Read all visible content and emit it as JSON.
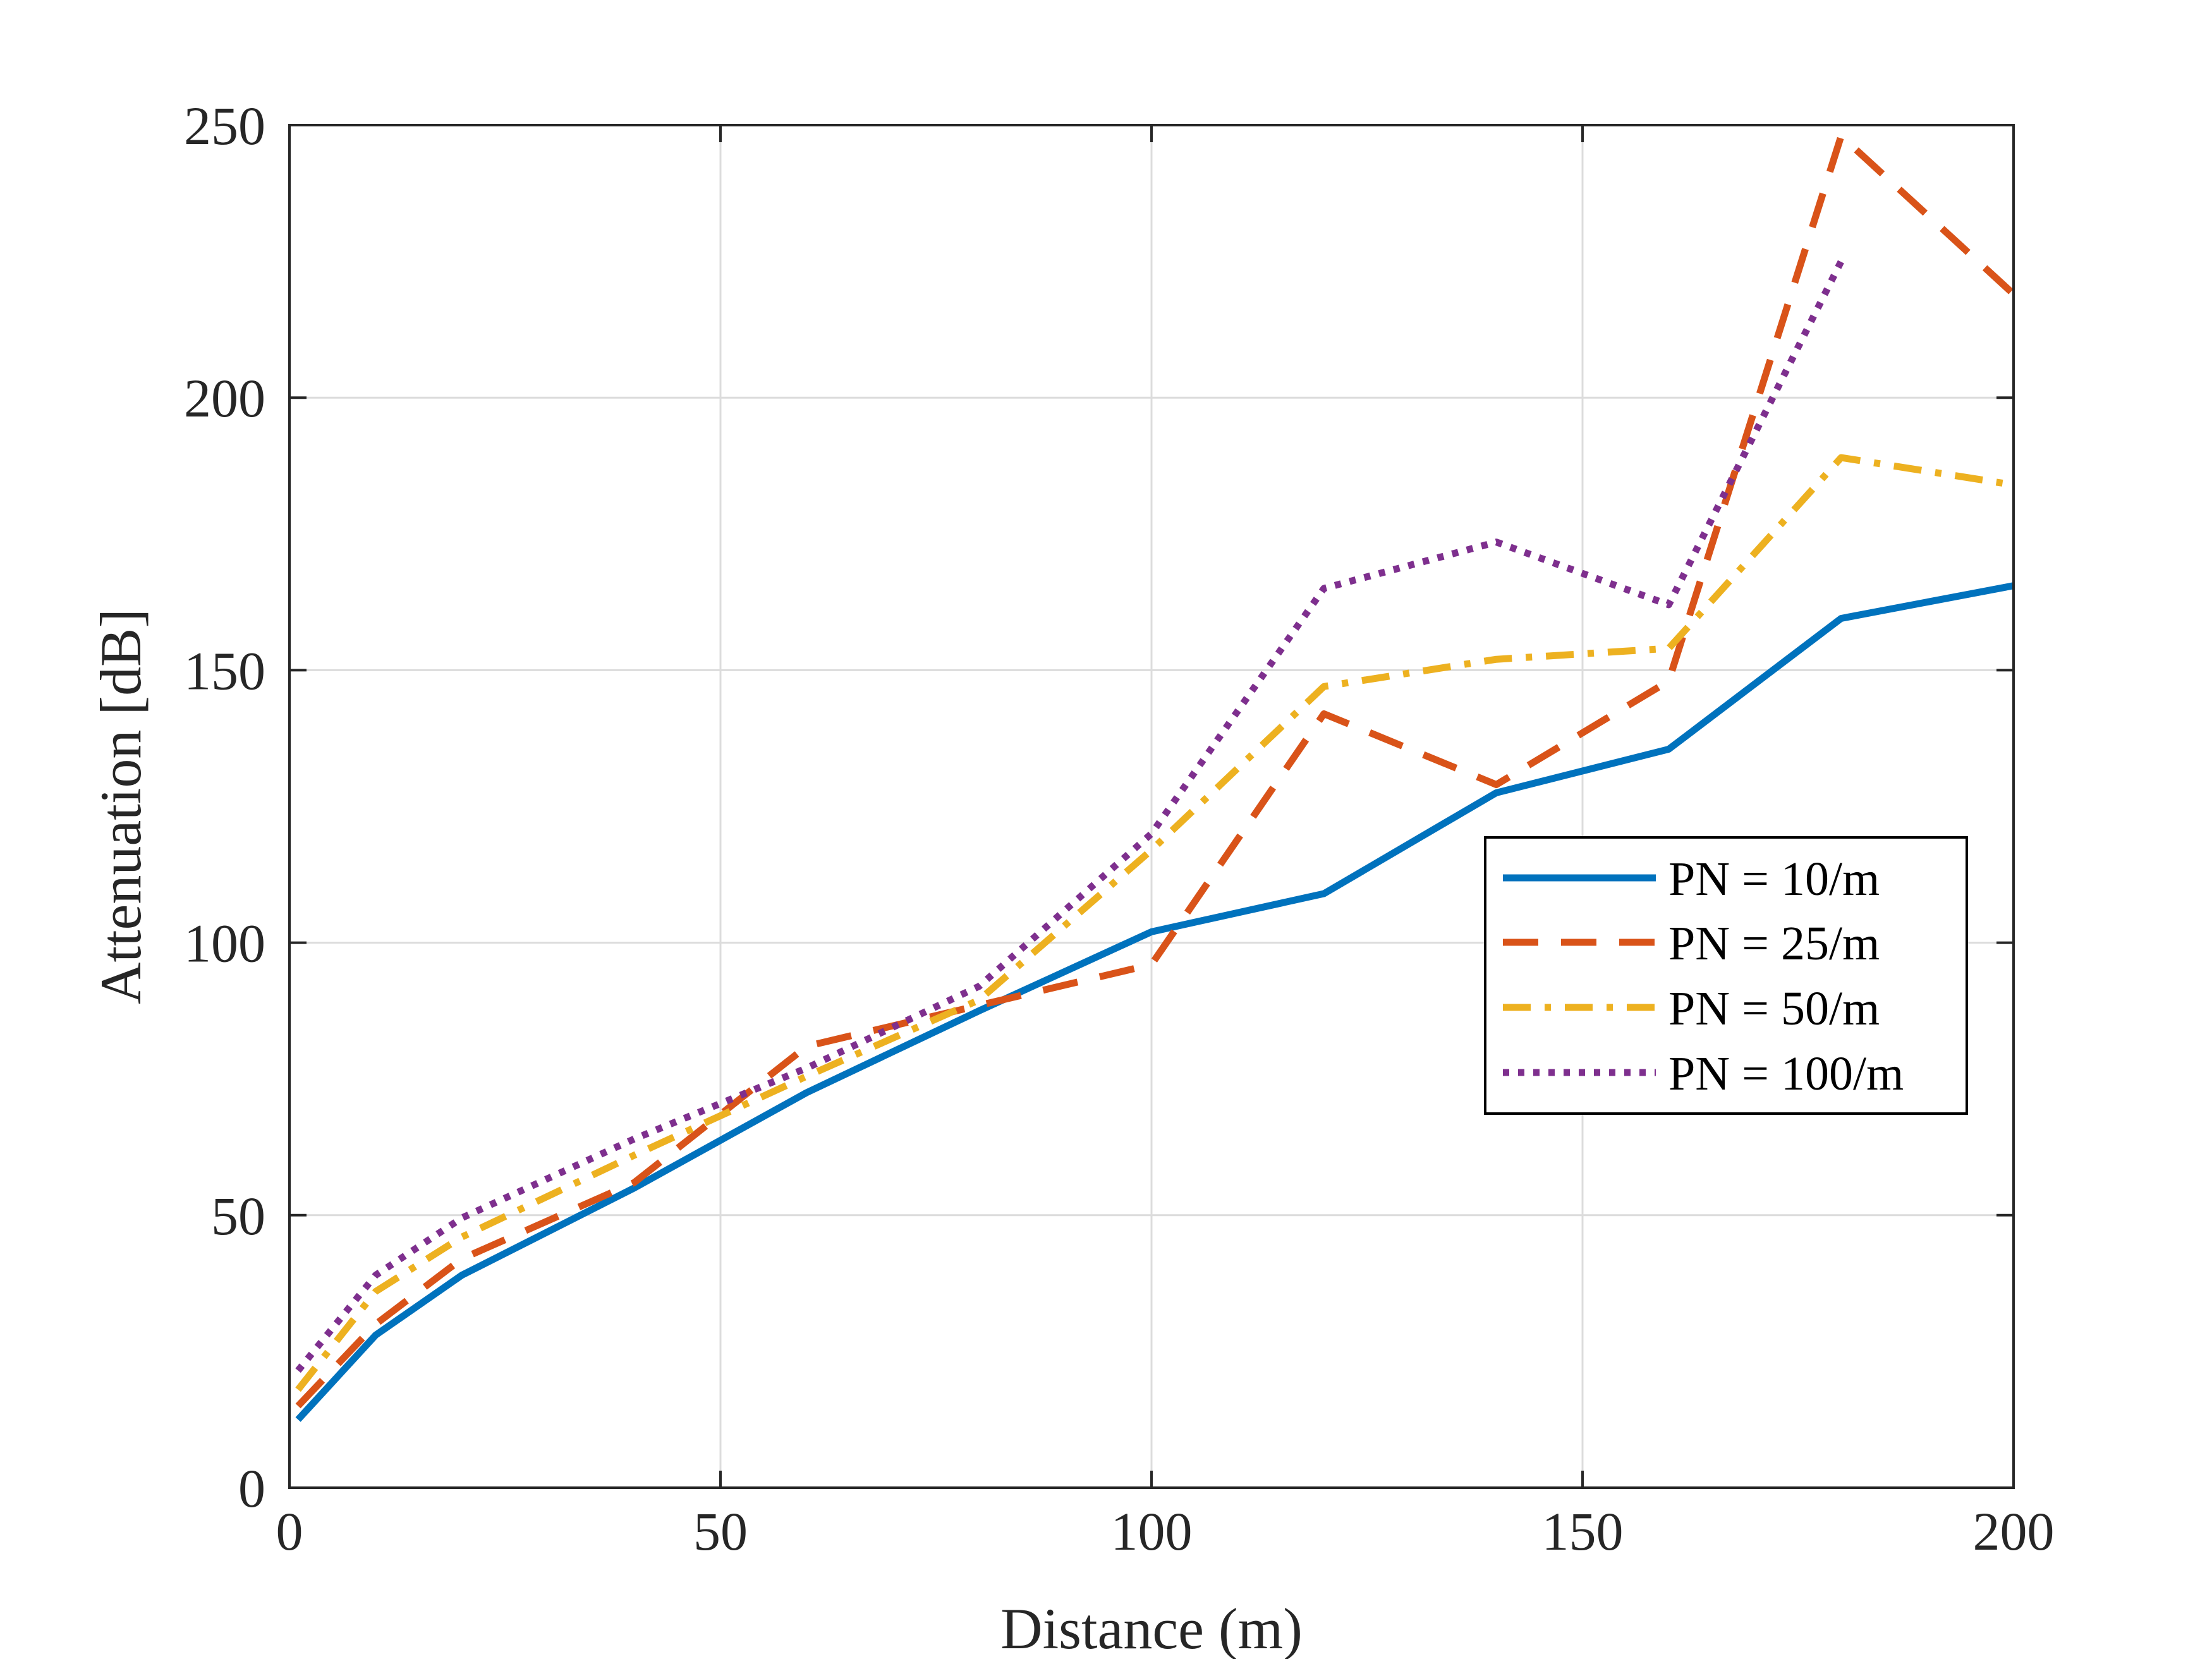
{
  "chart_data": {
    "type": "line",
    "title": "",
    "xlabel": "Distance (m)",
    "ylabel": "Attenuation [dB]",
    "xlim": [
      0,
      200
    ],
    "ylim": [
      0,
      250
    ],
    "xticks": [
      0,
      50,
      100,
      150,
      200
    ],
    "xtick_labels": [
      "0",
      "50",
      "100",
      "150",
      "200"
    ],
    "yticks": [
      0,
      50,
      100,
      150,
      200,
      250
    ],
    "ytick_labels": [
      "0",
      "50",
      "100",
      "150",
      "200",
      "250"
    ],
    "grid": true,
    "legend_position": "center-right",
    "series": [
      {
        "name": "PN = 10/m",
        "color": "#0072BD",
        "style": "solid",
        "x": [
          1,
          10,
          20,
          40,
          60,
          80,
          100,
          120,
          140,
          160,
          180,
          200
        ],
        "y": [
          12.5,
          28,
          39,
          55,
          72.5,
          87.5,
          102,
          109,
          127.5,
          135.5,
          159.5,
          165.5
        ]
      },
      {
        "name": "PN = 25/m",
        "color": "#D95319",
        "style": "dashed",
        "x": [
          1,
          10,
          20,
          40,
          60,
          80,
          100,
          120,
          140,
          160,
          180,
          200
        ],
        "y": [
          15,
          30,
          42,
          56,
          81,
          88.5,
          96,
          142,
          129,
          148,
          248,
          219
        ]
      },
      {
        "name": "PN = 50/m",
        "color": "#EDB120",
        "style": "dashdot",
        "x": [
          1,
          10,
          20,
          40,
          60,
          80,
          100,
          120,
          140,
          160,
          180,
          200
        ],
        "y": [
          18,
          36,
          46,
          61,
          75.5,
          89.5,
          117,
          147,
          152,
          154,
          189,
          184
        ]
      },
      {
        "name": "PN = 100/m",
        "color": "#7E2F8E",
        "style": "dotted",
        "x": [
          1,
          10,
          20,
          40,
          60,
          80,
          100,
          120,
          140,
          160,
          180
        ],
        "y": [
          21.5,
          39,
          49.5,
          64,
          77,
          92,
          120,
          165,
          173.5,
          162,
          225
        ]
      }
    ]
  }
}
